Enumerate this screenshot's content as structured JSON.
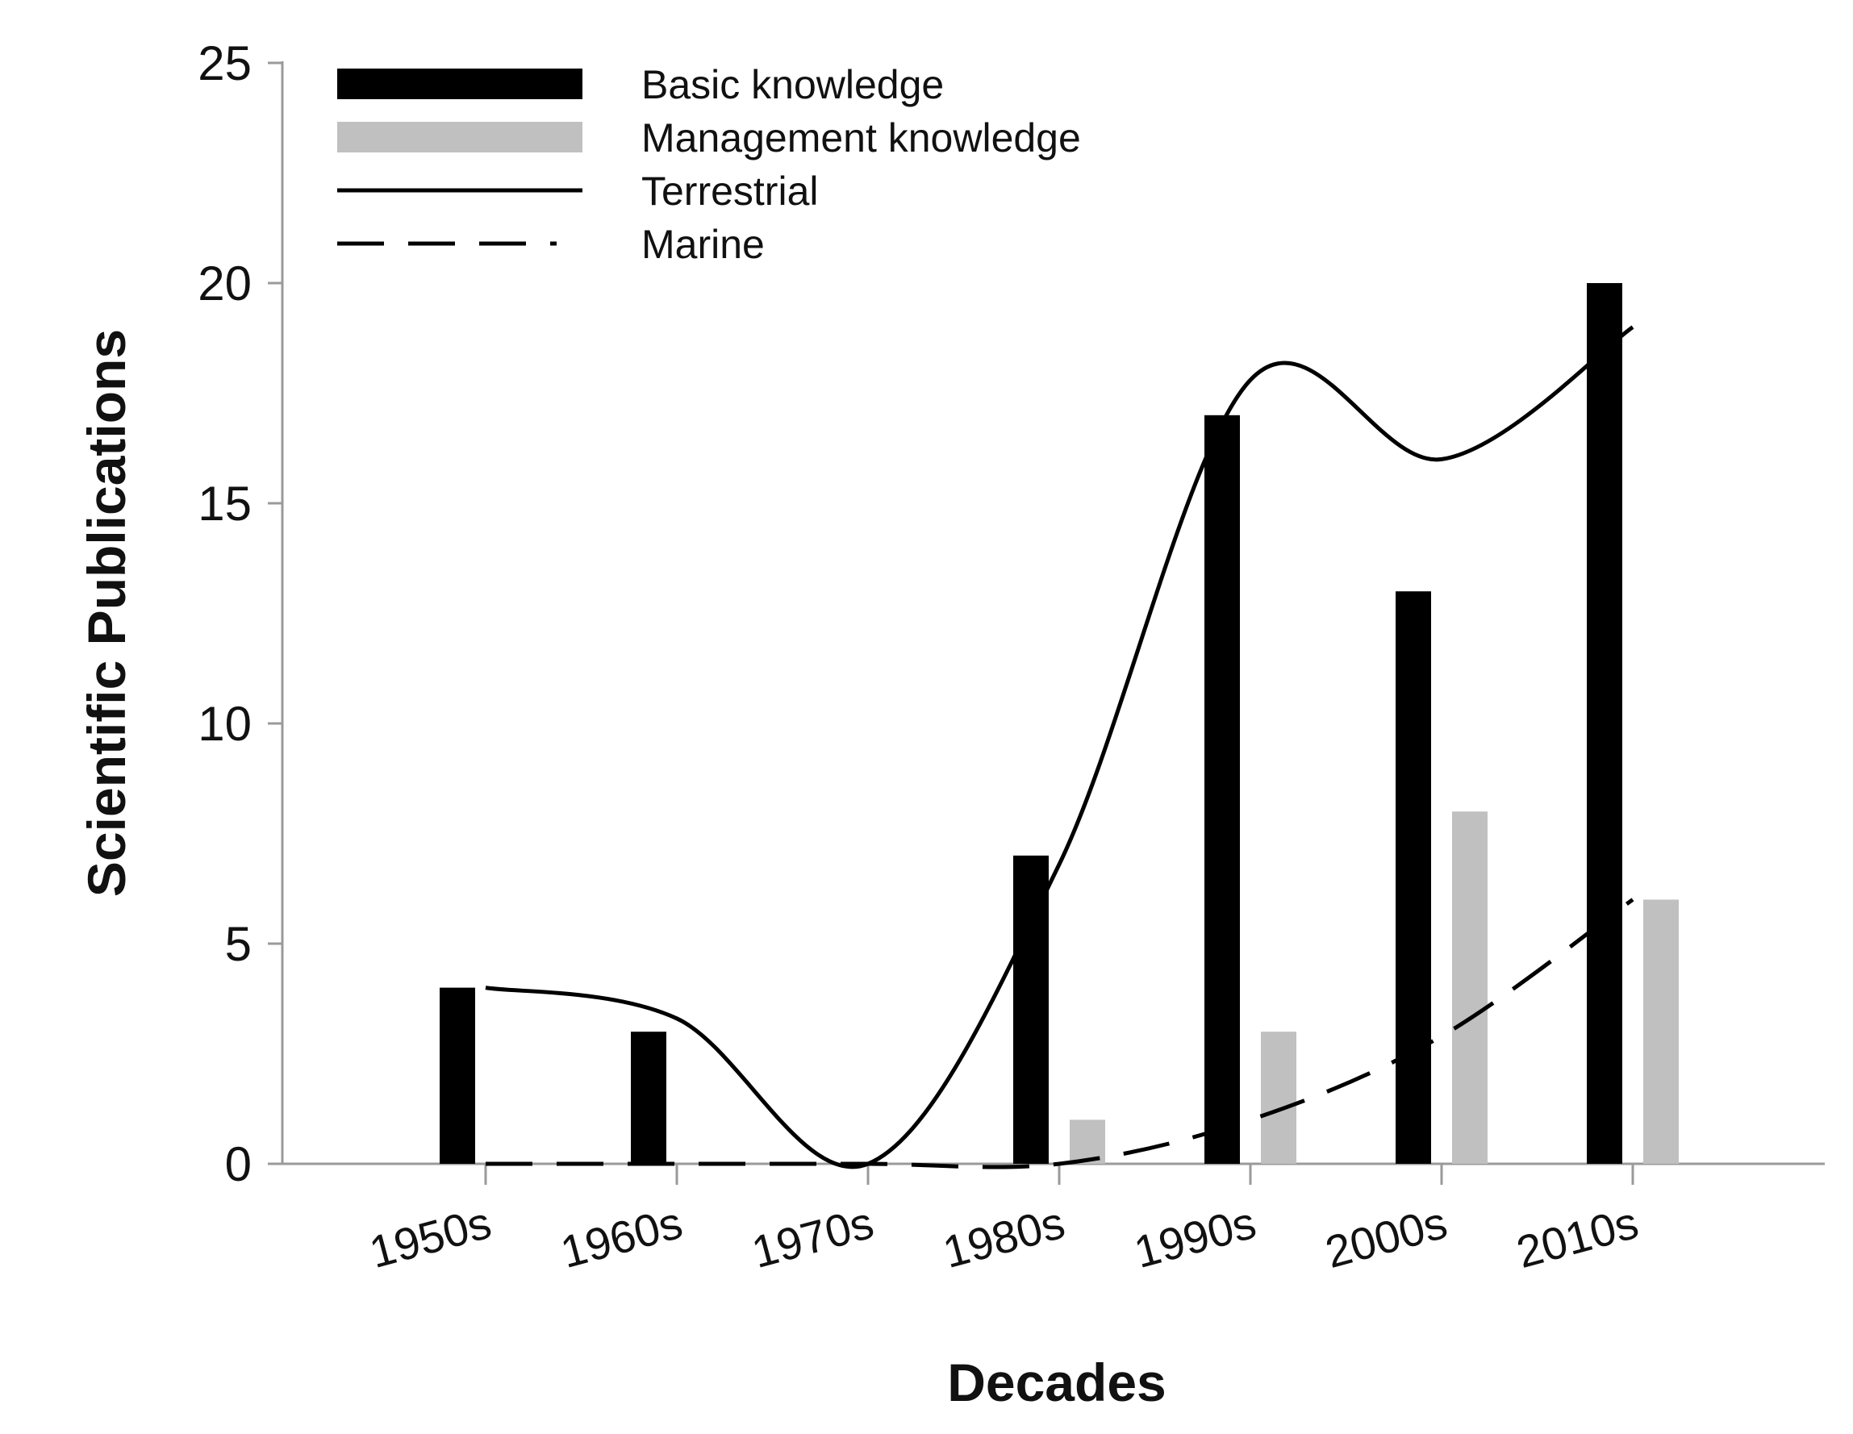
{
  "chart_data": {
    "type": "bar",
    "categories": [
      "1950s",
      "1960s",
      "1970s",
      "1980s",
      "1990s",
      "2000s",
      "2010s"
    ],
    "series": [
      {
        "name": "Basic knowledge",
        "kind": "bar",
        "color": "#000000",
        "values": [
          4,
          3,
          0,
          7,
          17,
          13,
          20
        ]
      },
      {
        "name": "Management knowledge",
        "kind": "bar",
        "color": "#c0c0c0",
        "values": [
          0,
          0,
          0,
          1,
          3,
          8,
          6
        ]
      },
      {
        "name": "Terrestrial",
        "kind": "line",
        "style": "solid",
        "color": "#000000",
        "values": [
          4,
          3.3,
          0,
          6.8,
          17.8,
          16,
          19
        ]
      },
      {
        "name": "Marine",
        "kind": "line",
        "style": "dashed",
        "color": "#000000",
        "values": [
          0,
          0,
          0,
          0,
          1,
          2.9,
          6
        ]
      }
    ],
    "xlabel": "Decades",
    "ylabel": "Scientific Publications",
    "ylim": [
      0,
      25
    ],
    "yticks": [
      0,
      5,
      10,
      15,
      20,
      25
    ],
    "grid": false,
    "legend_position": "top-left",
    "colors": {
      "axis": "#9a9a9a",
      "basic": "#000000",
      "management": "#c0c0c0",
      "line": "#000000"
    }
  }
}
